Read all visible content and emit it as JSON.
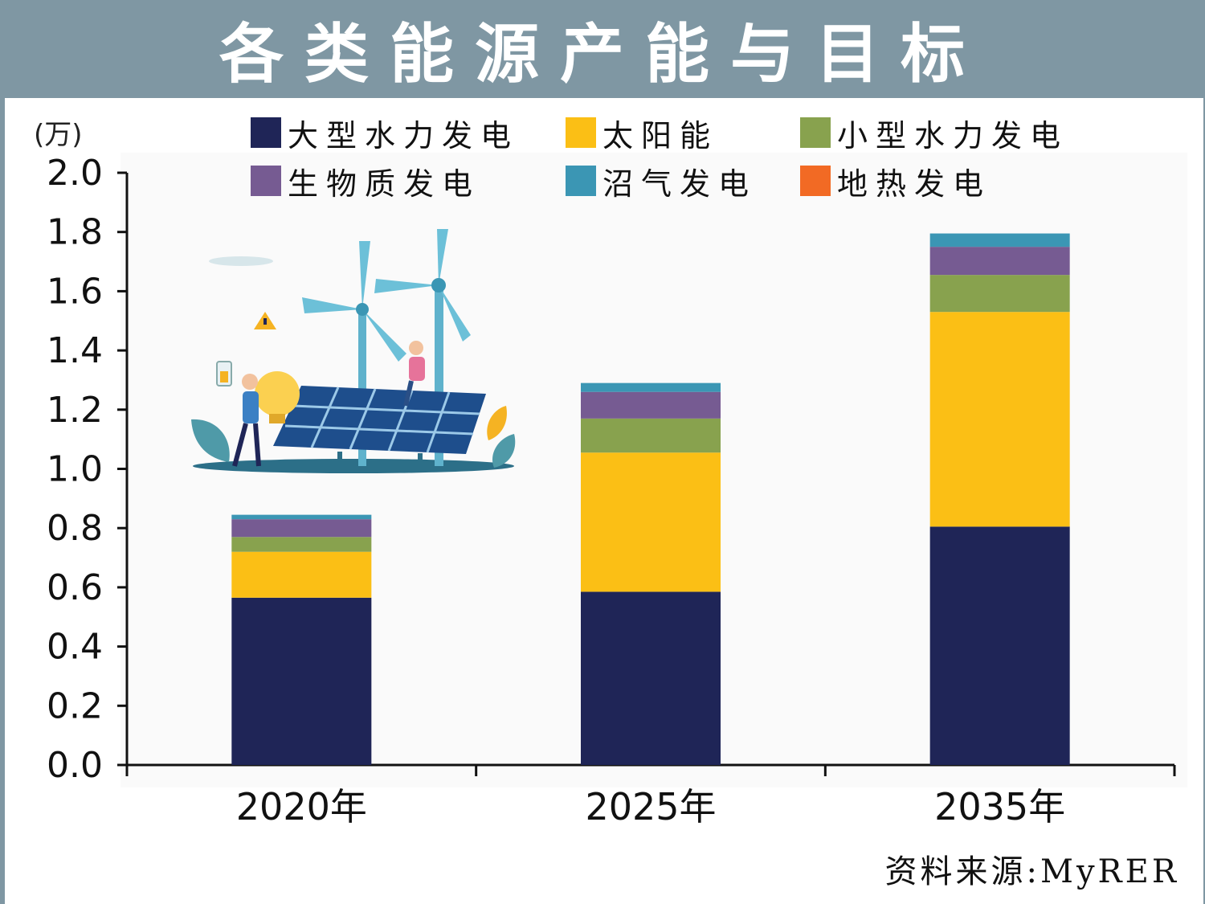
{
  "header": {
    "title": "各类能源产能与目标"
  },
  "unit_label": "(万)",
  "source": "资料来源:MyRER",
  "colors": {
    "header_bg": "#7f97a3",
    "large_hydro": "#1f2557",
    "solar": "#fbbf15",
    "small_hydro": "#88a24e",
    "biomass": "#765b92",
    "biogas": "#3b96b4",
    "geothermal": "#f26a24"
  },
  "illustration": {
    "icons": [
      "wind-turbine-icon",
      "solar-panel-icon",
      "light-bulb-icon",
      "battery-icon",
      "warning-sign-icon",
      "person-icon",
      "leaf-icon"
    ]
  },
  "chart_data": {
    "type": "bar",
    "stacked": true,
    "title": "各类能源产能与目标",
    "ylabel": "(万)",
    "xlabel": "",
    "categories": [
      "2020年",
      "2025年",
      "2035年"
    ],
    "ylim": [
      0,
      2.0
    ],
    "yticks": [
      "0.0",
      "0.2",
      "0.4",
      "0.6",
      "0.8",
      "1.0",
      "1.2",
      "1.4",
      "1.6",
      "1.8",
      "2.0"
    ],
    "legend_position": "top",
    "grid": false,
    "series": [
      {
        "name": "大型水力发电",
        "color": "#1f2557",
        "values": [
          0.565,
          0.585,
          0.805
        ]
      },
      {
        "name": "太阳能",
        "color": "#fbbf15",
        "values": [
          0.155,
          0.47,
          0.725
        ]
      },
      {
        "name": "小型水力发电",
        "color": "#88a24e",
        "values": [
          0.05,
          0.115,
          0.125
        ]
      },
      {
        "name": "生物质发电",
        "color": "#765b92",
        "values": [
          0.06,
          0.09,
          0.095
        ]
      },
      {
        "name": "沼气发电",
        "color": "#3b96b4",
        "values": [
          0.015,
          0.03,
          0.045
        ]
      },
      {
        "name": "地热发电",
        "color": "#f26a24",
        "values": [
          0,
          0,
          0
        ]
      }
    ]
  }
}
